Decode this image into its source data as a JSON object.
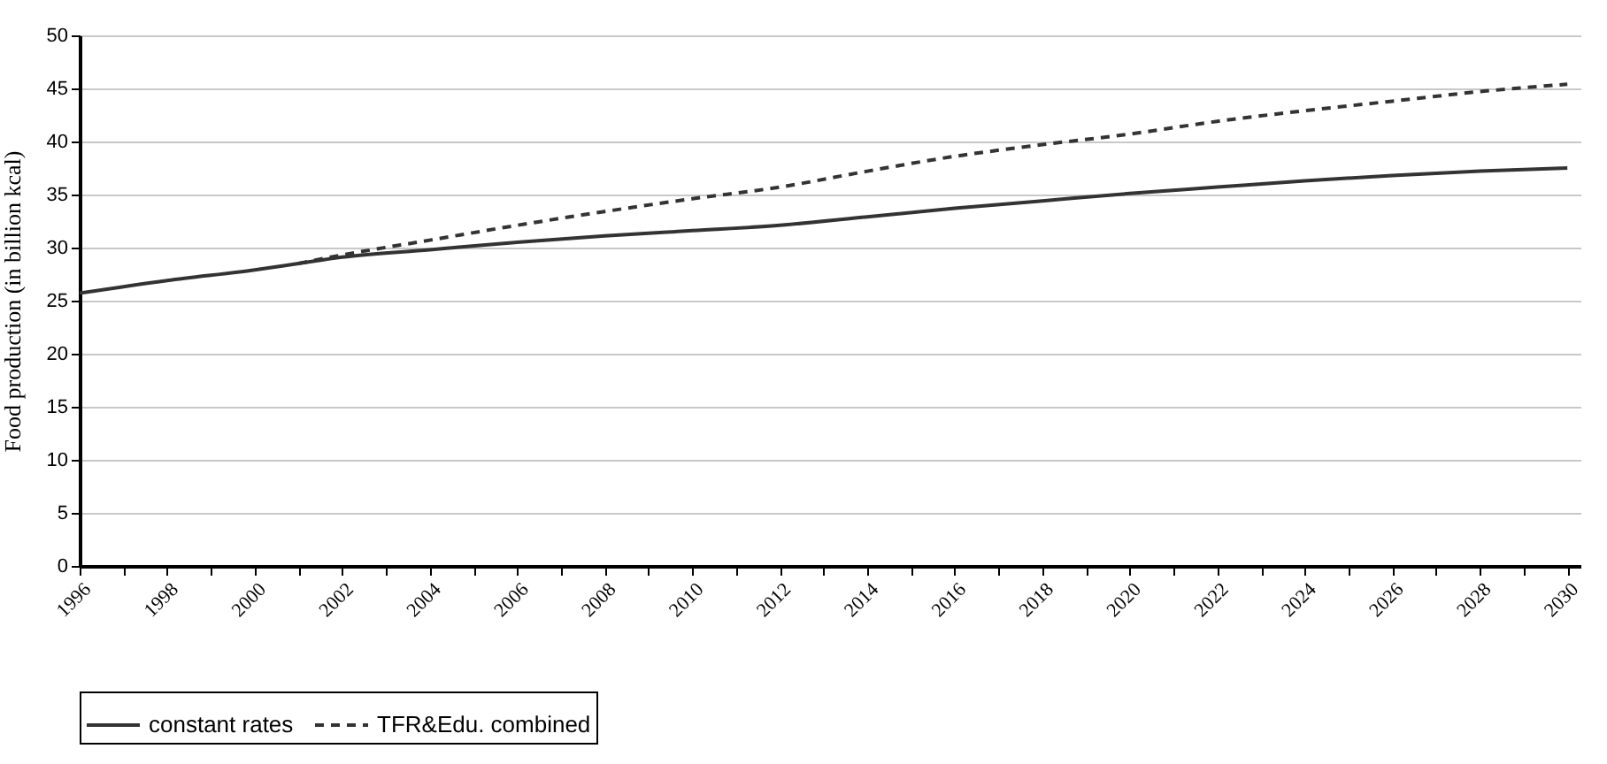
{
  "chart_data": {
    "type": "line",
    "ylabel": "Food production (in billion kcal)",
    "xlim": [
      1996,
      2030.3
    ],
    "ylim": [
      0,
      50
    ],
    "xticks": [
      1996,
      {
        "value": 1997,
        "label": null
      },
      1998,
      {
        "value": 1999,
        "label": null
      },
      2000,
      {
        "value": 2001,
        "label": null
      },
      2002,
      {
        "value": 2003,
        "label": null
      },
      2004,
      {
        "value": 2005,
        "label": null
      },
      2006,
      {
        "value": 2007,
        "label": null
      },
      2008,
      {
        "value": 2009,
        "label": null
      },
      2010,
      {
        "value": 2011,
        "label": null
      },
      2012,
      {
        "value": 2013,
        "label": null
      },
      2014,
      {
        "value": 2015,
        "label": null
      },
      2016,
      {
        "value": 2017,
        "label": null
      },
      2018,
      {
        "value": 2019,
        "label": null
      },
      2020,
      {
        "value": 2021,
        "label": null
      },
      2022,
      {
        "value": 2023,
        "label": null
      },
      2024,
      {
        "value": 2025,
        "label": null
      },
      2026,
      {
        "value": 2027,
        "label": null
      },
      2028,
      {
        "value": 2029,
        "label": null
      },
      2030
    ],
    "yticks": [
      0,
      5,
      10,
      15,
      20,
      25,
      30,
      35,
      40,
      45,
      50
    ],
    "grid": "y",
    "legend": "bottom",
    "marker": "none",
    "series": [
      {
        "name": "constant rates",
        "color": "#333333",
        "line_style": "solid",
        "x": [
          1996,
          1998,
          2000,
          2001,
          2002,
          2004,
          2006,
          2008,
          2010,
          2012,
          2014,
          2016,
          2018,
          2020,
          2022,
          2024,
          2026,
          2028,
          2030
        ],
        "values": [
          25.7,
          26.9,
          27.9,
          28.5,
          29.1,
          29.8,
          30.5,
          31.1,
          31.6,
          32.1,
          32.9,
          33.7,
          34.4,
          35.1,
          35.7,
          36.3,
          36.8,
          37.2,
          37.5
        ]
      },
      {
        "name": "TFR&Edu. combined",
        "color": "#333333",
        "line_style": "dashed",
        "x": [
          2001,
          2002,
          2004,
          2006,
          2008,
          2010,
          2012,
          2014,
          2016,
          2018,
          2020,
          2022,
          2024,
          2026,
          2028,
          2030
        ],
        "values": [
          28.5,
          29.3,
          30.7,
          32.1,
          33.4,
          34.6,
          35.7,
          37.2,
          38.6,
          39.7,
          40.7,
          41.9,
          42.9,
          43.8,
          44.7,
          45.4
        ]
      }
    ]
  }
}
